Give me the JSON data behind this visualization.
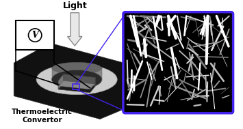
{
  "bg_color": "#ffffff",
  "light_label": "Light",
  "bottom_label": "Thermoelectric\nConvertor",
  "platform_dark": "#111111",
  "platform_light": "#cccccc",
  "device_top": "#1a1a1a",
  "device_front": "#555555",
  "device_side": "#777777",
  "inset_border_color": "#4422ee",
  "inset_bg": "#000000",
  "line_color": "#4422ee",
  "wire_color": "#000000",
  "figsize": [
    3.55,
    1.89
  ],
  "dpi": 100
}
